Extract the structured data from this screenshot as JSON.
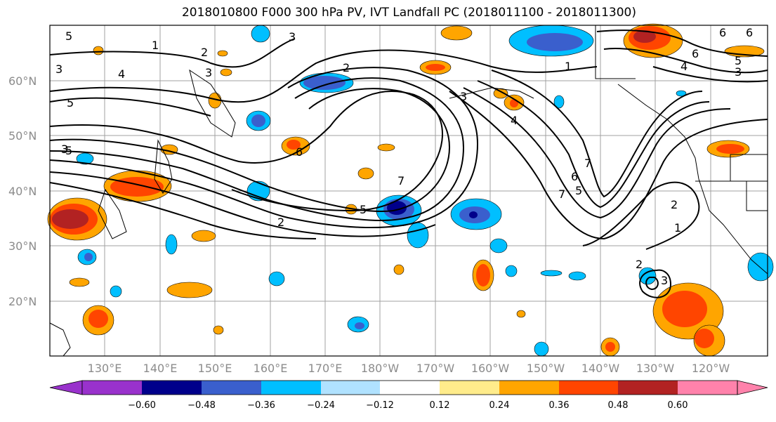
{
  "title": "2018010800 F000 300 hPa PV, IVT Landfall PC (2018011100 - 2018011300)",
  "lat_labels": [
    "60°N",
    "50°N",
    "40°N",
    "30°N",
    "20°N"
  ],
  "lon_labels": [
    "130°E",
    "140°E",
    "150°E",
    "160°E",
    "170°E",
    "180°W",
    "170°W",
    "160°W",
    "150°W",
    "140°W",
    "130°W",
    "120°W"
  ],
  "colorbar": {
    "ticks": [
      "−0.60",
      "−0.48",
      "−0.36",
      "−0.24",
      "−0.12",
      "0.12",
      "0.24",
      "0.36",
      "0.48",
      "0.60"
    ],
    "colors": [
      "#9932cc",
      "#00008b",
      "#3a5fcd",
      "#00bfff",
      "#b0e2ff",
      "#ffffff",
      "#ffec8b",
      "#ffa500",
      "#ff4500",
      "#b22222",
      "#ff82ab"
    ]
  },
  "contour_labels": [
    "5",
    "1",
    "2",
    "3",
    "3",
    "4",
    "3",
    "5",
    "1",
    "2",
    "6",
    "6",
    "6",
    "5",
    "4",
    "3",
    "3",
    "4",
    "5",
    "3",
    "6",
    "7",
    "5",
    "7",
    "2",
    "6",
    "5",
    "7",
    "2",
    "2",
    "3",
    "1"
  ],
  "fill_colors": {
    "blue_light": "#00bfff",
    "blue_mid": "#3a5fcd",
    "blue_dark": "#00008b",
    "orange_light": "#ffa500",
    "orange_mid": "#ff4500",
    "red_dark": "#b22222",
    "yellow": "#ffec8b"
  }
}
